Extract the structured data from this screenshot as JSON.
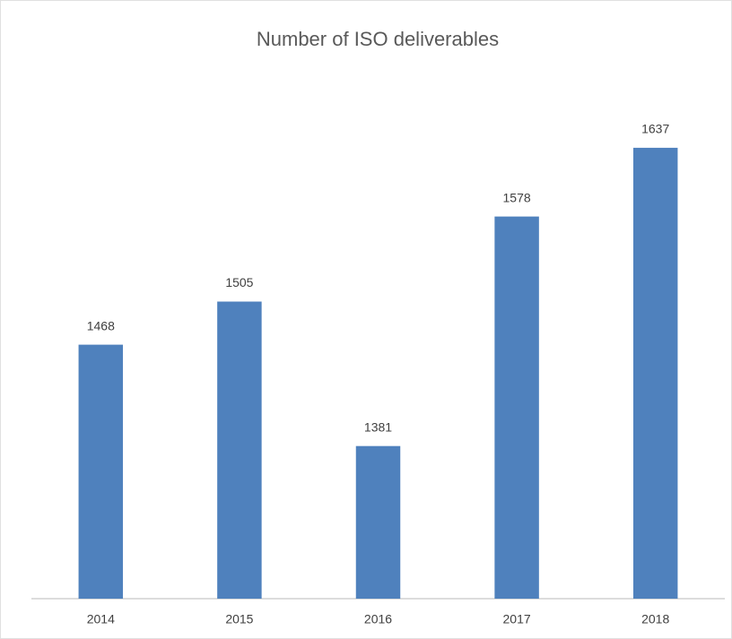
{
  "chart_data": {
    "type": "bar",
    "title": "Number of ISO deliverables",
    "categories": [
      "2014",
      "2015",
      "2016",
      "2017",
      "2018"
    ],
    "values": [
      1468,
      1505,
      1381,
      1578,
      1637
    ],
    "color": "#4f81bd",
    "ylim": [
      1250,
      1650
    ]
  }
}
